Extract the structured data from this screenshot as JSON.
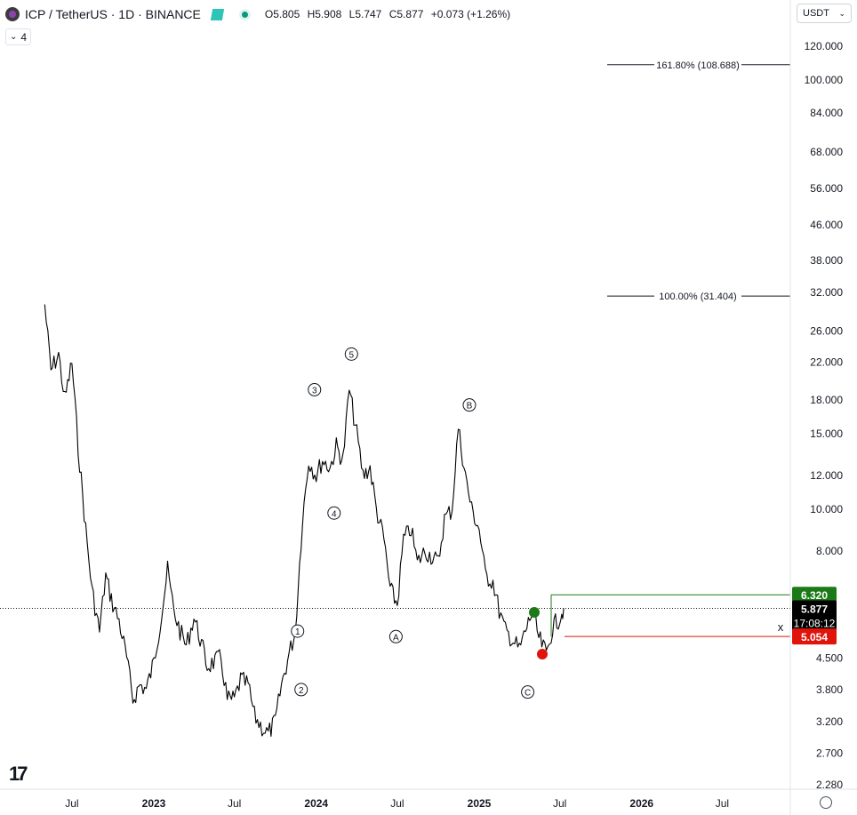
{
  "header": {
    "symbol_title": "ICP / TetherUS · 1D · BINANCE",
    "ohlc": {
      "open": "O5.805",
      "high": "H5.908",
      "low": "L5.747",
      "close": "C5.877",
      "change": "+0.073 (+1.26%)"
    },
    "indicator_count": "4",
    "currency": "USDT"
  },
  "colors": {
    "price_line": "#000000",
    "axis_text": "#131722",
    "green_level": "#1b7a16",
    "red_level": "#e0140b",
    "current_label_bg": "#000000"
  },
  "chart_data": {
    "type": "line",
    "title": "ICP / TetherUS · 1D · BINANCE",
    "y_scale": "log",
    "ylim": [
      2.2,
      130
    ],
    "y_ticks": [
      "120.000",
      "100.000",
      "84.000",
      "68.000",
      "56.000",
      "46.000",
      "38.000",
      "32.000",
      "26.000",
      "22.000",
      "18.000",
      "15.000",
      "12.000",
      "10.000",
      "8.000",
      "6.320",
      "5.877",
      "5.054",
      "4.500",
      "3.800",
      "3.200",
      "2.700",
      "2.280"
    ],
    "x_ticks": [
      "Jul",
      "2023",
      "Jul",
      "2024",
      "Jul",
      "2025",
      "Jul",
      "2026",
      "Jul"
    ],
    "x": [
      "2022-05-01",
      "2022-05-15",
      "2022-06-01",
      "2022-06-15",
      "2022-07-01",
      "2022-07-15",
      "2022-08-01",
      "2022-08-15",
      "2022-09-01",
      "2022-09-15",
      "2022-10-01",
      "2022-10-15",
      "2022-11-01",
      "2022-11-15",
      "2022-12-01",
      "2022-12-15",
      "2023-01-01",
      "2023-01-15",
      "2023-02-01",
      "2023-02-15",
      "2023-03-01",
      "2023-03-15",
      "2023-04-01",
      "2023-04-15",
      "2023-05-01",
      "2023-05-15",
      "2023-06-01",
      "2023-06-15",
      "2023-07-01",
      "2023-07-15",
      "2023-08-01",
      "2023-08-15",
      "2023-09-01",
      "2023-09-15",
      "2023-10-01",
      "2023-10-15",
      "2023-11-01",
      "2023-11-15",
      "2023-12-01",
      "2023-12-15",
      "2024-01-01",
      "2024-01-15",
      "2024-02-01",
      "2024-02-15",
      "2024-03-01",
      "2024-03-15",
      "2024-04-01",
      "2024-04-15",
      "2024-05-01",
      "2024-05-15",
      "2024-06-01",
      "2024-06-15",
      "2024-07-01",
      "2024-07-15",
      "2024-08-01",
      "2024-08-15",
      "2024-09-01",
      "2024-09-15",
      "2024-10-01",
      "2024-10-15",
      "2024-11-01",
      "2024-11-15",
      "2024-12-01",
      "2024-12-15",
      "2025-01-01",
      "2025-01-15",
      "2025-02-01",
      "2025-02-15",
      "2025-03-01",
      "2025-03-15",
      "2025-04-01",
      "2025-04-15",
      "2025-05-01",
      "2025-05-15",
      "2025-06-01",
      "2025-06-15",
      "2025-07-01",
      "2025-07-10"
    ],
    "values": [
      30,
      21,
      23,
      18,
      22,
      14,
      9.0,
      6.5,
      5.2,
      7.0,
      6.0,
      5.5,
      4.5,
      3.6,
      3.9,
      3.8,
      4.4,
      5.4,
      7.2,
      5.8,
      5.2,
      4.8,
      5.6,
      5.0,
      4.3,
      4.4,
      4.5,
      3.6,
      3.6,
      4.0,
      3.9,
      3.3,
      3.1,
      3.0,
      3.2,
      3.9,
      4.6,
      5.2,
      9.5,
      13,
      12,
      13,
      12.5,
      14,
      13,
      19,
      15,
      12,
      12.5,
      10,
      8.5,
      6.5,
      6.0,
      8.5,
      9.0,
      7.5,
      8.0,
      7.8,
      7.5,
      9.5,
      10,
      15.5,
      12,
      10,
      9.0,
      7.0,
      6.8,
      5.8,
      5.2,
      5.0,
      4.7,
      5.2,
      5.8,
      5.0,
      4.6,
      5.3,
      5.6,
      5.877
    ],
    "levels": [
      {
        "label": "161.80% (108.688)",
        "value": 108.688
      },
      {
        "label": "100.00% (31.404)",
        "value": 31.404
      }
    ],
    "last_price": {
      "value": "5.877",
      "countdown": "17:08:12"
    },
    "target_level": {
      "value": "6.320"
    },
    "stop_level": {
      "value": "5.054"
    },
    "wave_labels": [
      {
        "label": "1",
        "date": "2023-11-20",
        "value": 5.2
      },
      {
        "label": "2",
        "date": "2023-11-28",
        "value": 3.8
      },
      {
        "label": "3",
        "date": "2023-12-28",
        "value": 19
      },
      {
        "label": "4",
        "date": "2024-02-10",
        "value": 9.8
      },
      {
        "label": "5",
        "date": "2024-03-20",
        "value": 23
      },
      {
        "label": "A",
        "date": "2024-06-28",
        "value": 5.05
      },
      {
        "label": "B",
        "date": "2024-12-10",
        "value": 17.5
      },
      {
        "label": "C",
        "date": "2025-04-20",
        "value": 3.75
      }
    ],
    "cross_mark": "x",
    "grid": false
  }
}
